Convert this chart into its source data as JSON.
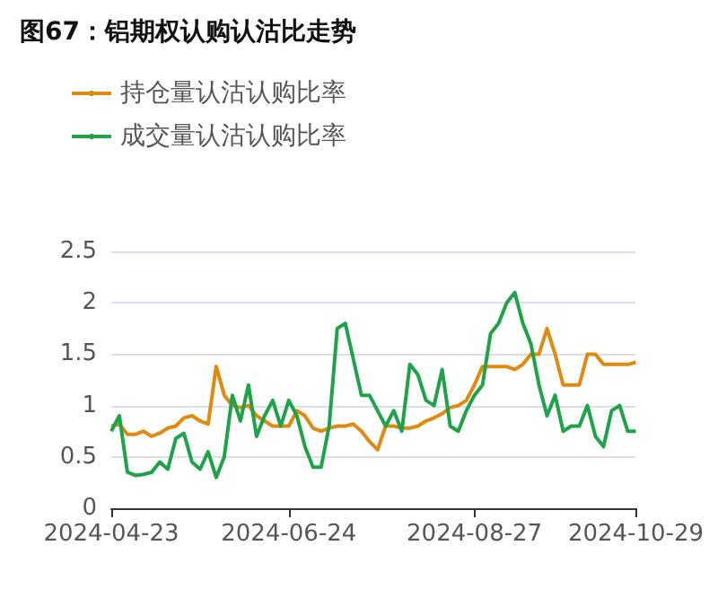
{
  "chart_data": {
    "type": "line",
    "title": "图67：铝期权认购认沽比走势",
    "categories": [
      "2024-04-23",
      null,
      null,
      null,
      null,
      null,
      null,
      null,
      null,
      null,
      null,
      null,
      null,
      null,
      null,
      null,
      null,
      null,
      null,
      null,
      null,
      null,
      "2024-06-24",
      null,
      null,
      null,
      null,
      null,
      null,
      null,
      null,
      null,
      null,
      null,
      null,
      null,
      null,
      null,
      null,
      null,
      null,
      null,
      null,
      null,
      null,
      "2024-08-27",
      null,
      null,
      null,
      null,
      null,
      null,
      null,
      null,
      null,
      null,
      null,
      null,
      null,
      null,
      null,
      null,
      null,
      null,
      null,
      "2024-10-29"
    ],
    "series": [
      {
        "name": "持仓量认沽认购比率",
        "color": "#e08a10",
        "values": [
          0.8,
          0.82,
          0.72,
          0.72,
          0.75,
          0.7,
          0.73,
          0.78,
          0.8,
          0.88,
          0.9,
          0.85,
          0.82,
          1.38,
          1.1,
          1.0,
          0.98,
          1.0,
          0.9,
          0.85,
          0.8,
          0.8,
          0.8,
          0.95,
          0.9,
          0.78,
          0.75,
          0.78,
          0.8,
          0.8,
          0.82,
          0.75,
          0.65,
          0.57,
          0.8,
          0.8,
          0.78,
          0.78,
          0.8,
          0.85,
          0.88,
          0.92,
          0.98,
          1.0,
          1.05,
          1.2,
          1.38,
          1.38,
          1.38,
          1.38,
          1.35,
          1.4,
          1.5,
          1.5,
          1.75,
          1.5,
          1.2,
          1.2,
          1.2,
          1.5,
          1.5,
          1.4,
          1.4,
          1.4,
          1.4,
          1.42
        ]
      },
      {
        "name": "成交量认沽认购比率",
        "color": "#1fa34a",
        "values": [
          0.75,
          0.9,
          0.35,
          0.32,
          0.33,
          0.35,
          0.45,
          0.38,
          0.68,
          0.73,
          0.45,
          0.38,
          0.55,
          0.3,
          0.5,
          1.1,
          0.85,
          1.2,
          0.7,
          0.9,
          1.05,
          0.8,
          1.05,
          0.9,
          0.6,
          0.4,
          0.4,
          0.8,
          1.75,
          1.8,
          1.45,
          1.1,
          1.1,
          0.95,
          0.8,
          0.95,
          0.75,
          1.4,
          1.3,
          1.05,
          1.0,
          1.35,
          0.8,
          0.75,
          0.95,
          1.1,
          1.2,
          1.7,
          1.8,
          2.0,
          2.1,
          1.8,
          1.6,
          1.2,
          0.9,
          1.1,
          0.75,
          0.8,
          0.8,
          1.0,
          0.7,
          0.6,
          0.95,
          1.0,
          0.75,
          0.75
        ]
      }
    ],
    "ylim": [
      0,
      2.5
    ],
    "yticks": [
      0,
      0.5,
      1,
      1.5,
      2,
      2.5
    ],
    "grid": "y",
    "legend": "top left"
  }
}
